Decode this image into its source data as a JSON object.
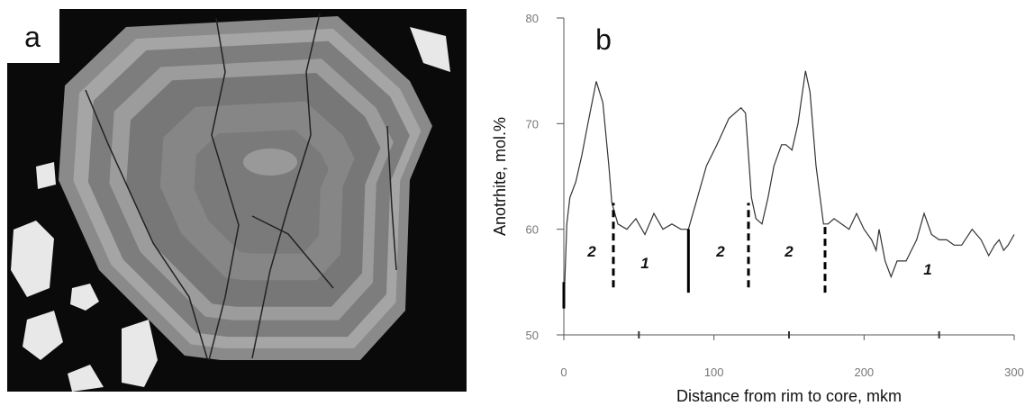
{
  "panel_a": {
    "label": "a"
  },
  "chart_data": {
    "type": "line",
    "label": "b",
    "x_label": "Distance from rim to core, mkm",
    "y_label": "Anotrhite, mol.%",
    "x": [
      0,
      2,
      4,
      8,
      12,
      16,
      21.6,
      26,
      30,
      32,
      36,
      42,
      48,
      54,
      60,
      66,
      72,
      78,
      83,
      88,
      95,
      102,
      110,
      118,
      121,
      125,
      128,
      132,
      136,
      140,
      145,
      148,
      152,
      156,
      161,
      164,
      168,
      173,
      176,
      180,
      185,
      190,
      195,
      200,
      205,
      208,
      210,
      214,
      218,
      222,
      228,
      235,
      240,
      245,
      250,
      255,
      260,
      265,
      272,
      278,
      283,
      287,
      290,
      293,
      296,
      300
    ],
    "series": [
      {
        "color": "#333333",
        "values": [
          52.5,
          60.5,
          63,
          64.5,
          67,
          70,
          74,
          72,
          66,
          62.5,
          60.5,
          60,
          61,
          59.5,
          61.5,
          60,
          60.5,
          60,
          60,
          62.5,
          66,
          68,
          70.5,
          71.5,
          71,
          63,
          61,
          60.5,
          63,
          66,
          68,
          68,
          67.5,
          70,
          75,
          73,
          66,
          60.5,
          60.5,
          61,
          60.5,
          60,
          61.5,
          60,
          59,
          58,
          60,
          57,
          55.5,
          57,
          57,
          59,
          61.5,
          59.5,
          59,
          59,
          58.5,
          58.5,
          60,
          59,
          57.5,
          58.5,
          59,
          58,
          58.5,
          59.5
        ]
      }
    ],
    "xlim": [
      0,
      300
    ],
    "ylim": [
      50,
      80
    ],
    "xticks": [
      0,
      100,
      200,
      300
    ],
    "xminorticks": [
      50,
      150,
      250
    ],
    "yticks": [
      50,
      60,
      70,
      80
    ],
    "boundaries": [
      {
        "x": 0,
        "y0": 52.5,
        "y1": 55,
        "style": "solid"
      },
      {
        "x": 33,
        "y0": 54.5,
        "y1": 62.5,
        "style": "dashed"
      },
      {
        "x": 83,
        "y0": 54,
        "y1": 60,
        "style": "solid"
      },
      {
        "x": 123,
        "y0": 54.5,
        "y1": 62.5,
        "style": "dashed"
      },
      {
        "x": 174,
        "y0": 54,
        "y1": 60.5,
        "style": "dashed"
      }
    ],
    "annotations": [
      "2",
      "1",
      "2",
      "2",
      "1"
    ]
  }
}
